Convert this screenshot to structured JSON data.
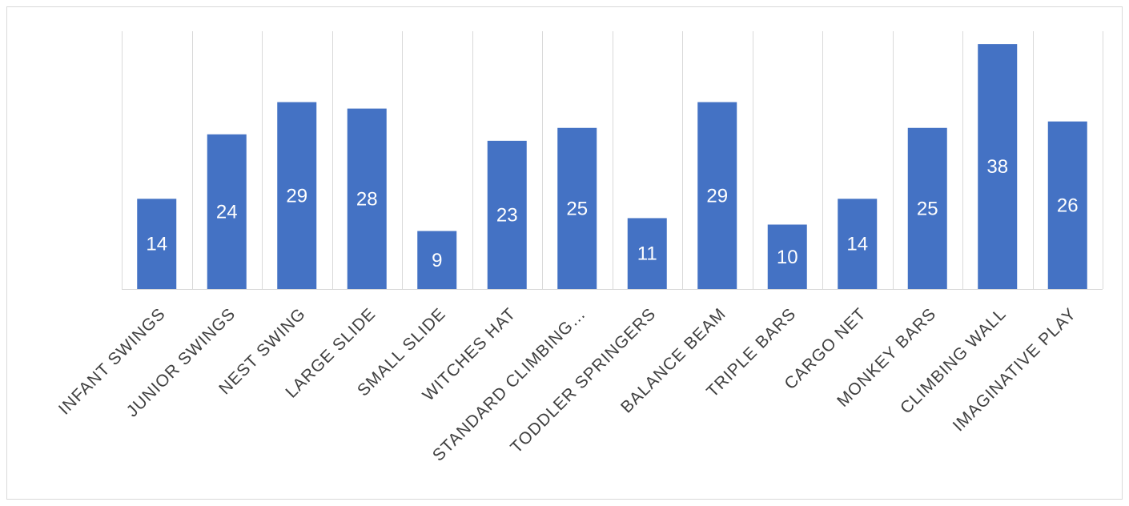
{
  "chart_data": {
    "type": "bar",
    "categories": [
      "INFANT SWINGS",
      "JUNIOR SWINGS",
      "NEST SWING",
      "LARGE SLIDE",
      "SMALL SLIDE",
      "WITCHES HAT",
      "STANDARD CLIMBING…",
      "TODDLER SPRINGERS",
      "BALANCE BEAM",
      "TRIPLE BARS",
      "CARGO NET",
      "MONKEY BARS",
      "CLIMBING WALL",
      "IMAGINATIVE PLAY"
    ],
    "values": [
      14,
      24,
      29,
      28,
      9,
      23,
      25,
      11,
      29,
      10,
      14,
      25,
      38,
      26
    ],
    "title": "",
    "xlabel": "",
    "ylabel": "",
    "ylim": [
      0,
      40
    ],
    "grid": "vertical",
    "legend": "none",
    "bar_color": "#4472c4",
    "data_label_color": "#ffffff",
    "tick_label_color": "#404040",
    "gridline_color": "#d9d9d9"
  }
}
